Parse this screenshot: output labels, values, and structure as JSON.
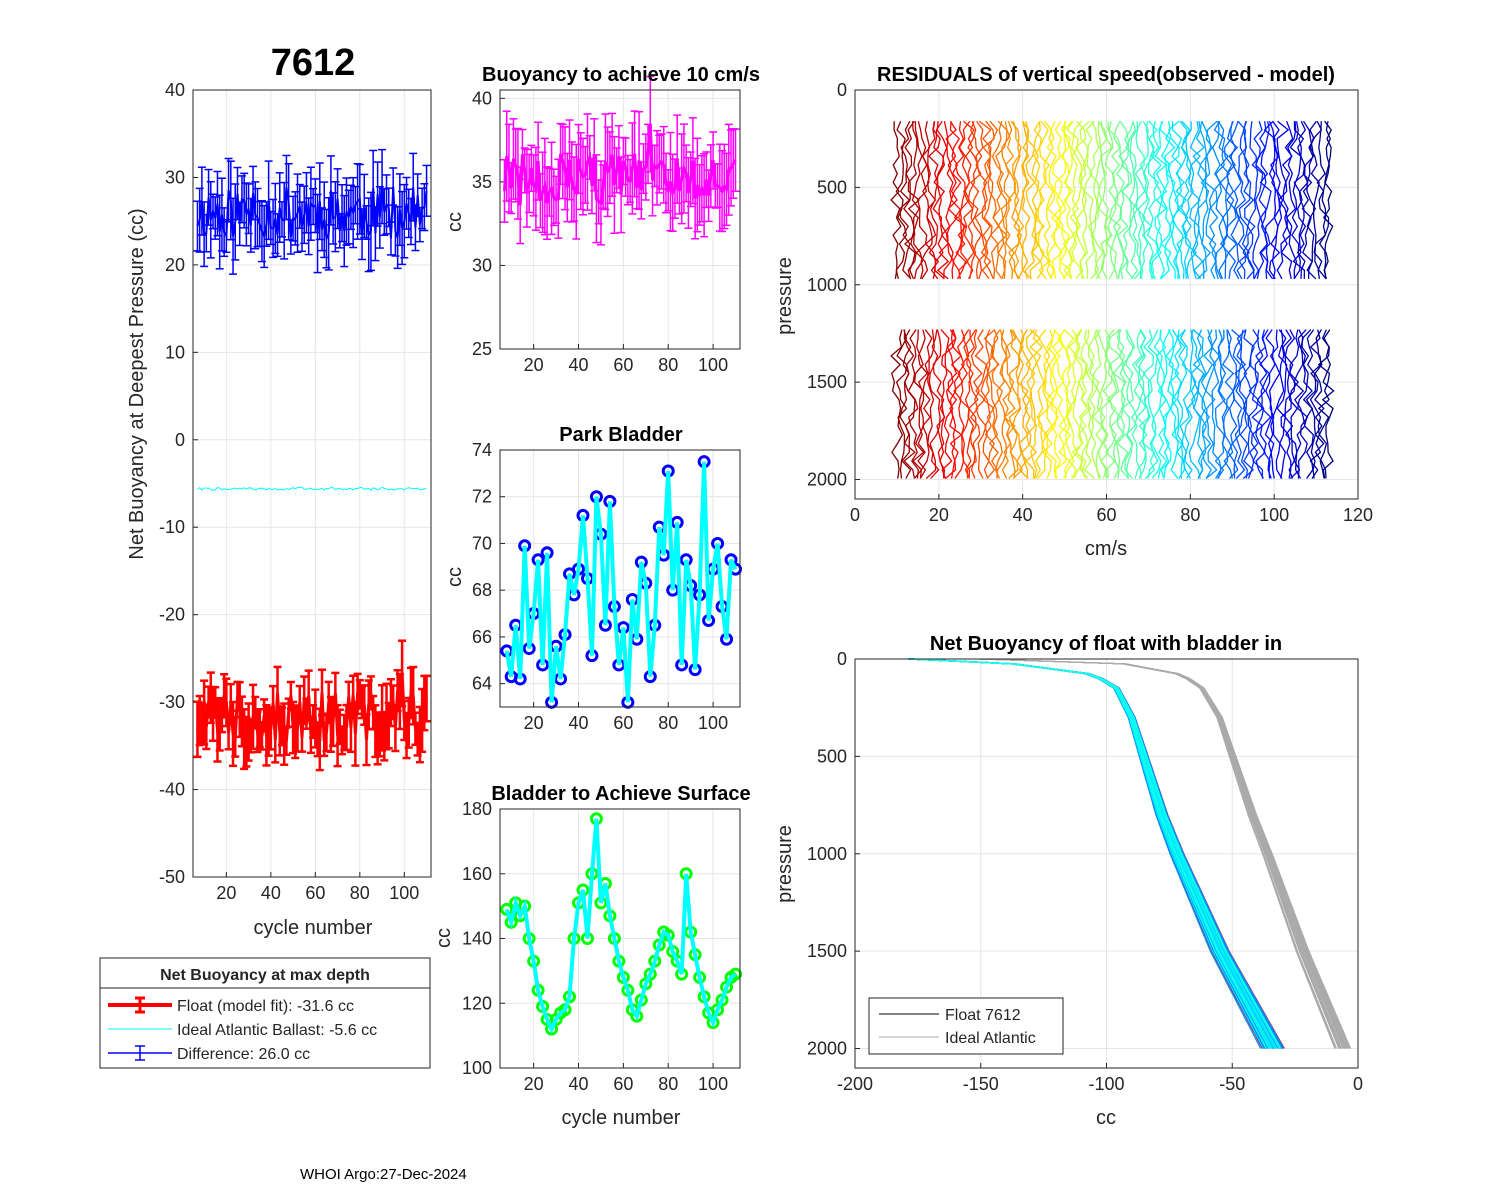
{
  "figure": {
    "footer": "WHOI Argo:27-Dec-2024"
  },
  "chart_data": [
    {
      "id": "net_buoyancy",
      "type": "line",
      "title": "7612",
      "xlabel": "cycle number",
      "ylabel": "Net Buoyancy at Deepest Pressure (cc)",
      "xlim": [
        5,
        112
      ],
      "ylim": [
        -50,
        40
      ],
      "xticks": [
        20,
        40,
        60,
        80,
        100
      ],
      "yticks": [
        -50,
        -40,
        -30,
        -20,
        -10,
        0,
        10,
        20,
        30,
        40
      ],
      "grid": true,
      "legend": {
        "title": "Net Buoyancy at max depth",
        "placement": "below",
        "entries": [
          "Float (model fit): -31.6 cc",
          "Ideal Atlantic Ballast:  -5.6 cc",
          "Difference:  26.0 cc"
        ]
      },
      "series": [
        {
          "name": "Float (model fit)",
          "color": "#ff0000",
          "errorbars": true,
          "mean": -31.6,
          "spread": 3.0,
          "err": 2.5
        },
        {
          "name": "Ideal Atlantic Ballast",
          "color": "#00ffff",
          "errorbars": false,
          "mean": -5.6,
          "spread": 0.15,
          "err": 0
        },
        {
          "name": "Difference",
          "color": "#0000ff",
          "errorbars": true,
          "mean": 26.0,
          "spread": 3.0,
          "err": 3.0
        }
      ]
    },
    {
      "id": "buoyancy_10cms",
      "type": "line",
      "title": "Buoyancy to achieve 10 cm/s",
      "xlabel": "",
      "ylabel": "cc",
      "xlim": [
        5,
        112
      ],
      "ylim": [
        25,
        40.5
      ],
      "xticks": [
        20,
        40,
        60,
        80,
        100
      ],
      "yticks": [
        25,
        30,
        35,
        40
      ],
      "grid": true,
      "series": [
        {
          "name": "buoyancy",
          "color": "#ff00ff",
          "errorbars": true,
          "mean": 35.2,
          "spread": 1.5,
          "err": 2.0
        }
      ]
    },
    {
      "id": "park_bladder",
      "type": "line",
      "title": "Park Bladder",
      "xlabel": "",
      "ylabel": "cc",
      "xlim": [
        5,
        112
      ],
      "ylim": [
        63,
        74
      ],
      "xticks": [
        20,
        40,
        60,
        80,
        100
      ],
      "yticks": [
        64,
        66,
        68,
        70,
        72,
        74
      ],
      "grid": true,
      "series": [
        {
          "name": "park bladder",
          "line_color": "#00ffff",
          "marker_color": "#0000ff",
          "x": [
            8,
            10,
            12,
            14,
            16,
            18,
            20,
            22,
            24,
            26,
            28,
            30,
            32,
            34,
            36,
            38,
            40,
            42,
            44,
            46,
            48,
            50,
            52,
            54,
            56,
            58,
            60,
            62,
            64,
            66,
            68,
            70,
            72,
            74,
            76,
            78,
            80,
            82,
            84,
            86,
            88,
            90,
            92,
            94,
            96,
            98,
            100,
            102,
            104,
            106,
            108,
            110
          ],
          "values": [
            65.4,
            64.3,
            66.5,
            64.2,
            69.9,
            65.5,
            67.0,
            69.3,
            64.8,
            69.6,
            63.2,
            65.6,
            64.2,
            66.1,
            68.7,
            67.8,
            68.9,
            71.2,
            68.5,
            65.2,
            72.0,
            70.4,
            66.5,
            71.8,
            67.3,
            64.8,
            66.4,
            63.2,
            67.6,
            65.9,
            69.2,
            68.3,
            64.3,
            66.5,
            70.7,
            69.5,
            73.1,
            68.0,
            70.9,
            64.8,
            69.3,
            68.2,
            64.6,
            67.8,
            73.5,
            66.7,
            68.9,
            70.0,
            67.3,
            65.9,
            69.3,
            68.9
          ]
        }
      ]
    },
    {
      "id": "bladder_surface",
      "type": "line",
      "title": "Bladder to Achieve Surface",
      "xlabel": "cycle number",
      "ylabel": "cc",
      "xlim": [
        5,
        112
      ],
      "ylim": [
        100,
        180
      ],
      "xticks": [
        20,
        40,
        60,
        80,
        100
      ],
      "yticks": [
        100,
        120,
        140,
        160,
        180
      ],
      "grid": true,
      "series": [
        {
          "name": "bladder surface",
          "line_color": "#00ffff",
          "marker_color": "#00ff00",
          "x": [
            8,
            10,
            12,
            14,
            16,
            18,
            20,
            22,
            24,
            26,
            28,
            30,
            32,
            34,
            36,
            38,
            40,
            42,
            44,
            46,
            48,
            50,
            52,
            54,
            56,
            58,
            60,
            62,
            64,
            66,
            68,
            70,
            72,
            74,
            76,
            78,
            80,
            82,
            84,
            86,
            88,
            90,
            92,
            94,
            96,
            98,
            100,
            102,
            104,
            106,
            108,
            110
          ],
          "values": [
            149,
            145,
            151,
            147,
            150,
            140,
            133,
            124,
            119,
            115,
            112,
            115,
            117,
            118,
            122,
            140,
            151,
            155,
            140,
            160,
            177,
            151,
            157,
            147,
            140,
            133,
            128,
            124,
            118,
            116,
            121,
            126,
            129,
            133,
            138,
            142,
            141,
            136,
            133,
            129,
            160,
            142,
            135,
            128,
            122,
            117,
            114,
            118,
            121,
            125,
            128,
            129
          ]
        }
      ]
    },
    {
      "id": "residuals",
      "type": "line",
      "title": "RESIDUALS of vertical speed(observed - model)",
      "xlabel": "cm/s",
      "ylabel": "pressure",
      "xlim": [
        0,
        120
      ],
      "ylim": [
        0,
        2100
      ],
      "y_reversed": true,
      "xticks": [
        0,
        20,
        40,
        60,
        80,
        100,
        120
      ],
      "yticks": [
        0,
        500,
        1000,
        1500,
        2000
      ],
      "grid": true,
      "profile_count": 104,
      "x_start": 10,
      "x_step": 1.0,
      "segments": [
        [
          160,
          1010
        ],
        [
          1230,
          1995
        ]
      ],
      "colormap": "jet"
    },
    {
      "id": "net_buoyancy_bladder",
      "type": "line",
      "title": "Net Buoyancy of float with bladder in",
      "xlabel": "cc",
      "ylabel": "pressure",
      "xlim": [
        -200,
        0
      ],
      "ylim": [
        0,
        2100
      ],
      "y_reversed": true,
      "xticks": [
        -200,
        -150,
        -100,
        -50,
        0
      ],
      "yticks": [
        0,
        500,
        1000,
        1500,
        2000
      ],
      "grid": true,
      "legend": {
        "placement": "bottom-left",
        "entries": [
          "Float 7612",
          "Ideal Atlantic"
        ]
      },
      "float_profile": {
        "pressure": [
          0,
          20,
          80,
          150,
          300,
          800,
          1000,
          1500,
          2000
        ],
        "cc": [
          -178,
          -140,
          -105,
          -96,
          -90,
          -78,
          -72,
          -55,
          -34
        ]
      },
      "ideal_profile": {
        "pressure": [
          0,
          20,
          80,
          150,
          300,
          800,
          1000,
          1500,
          2000
        ],
        "cc": [
          -150,
          -95,
          -70,
          -62,
          -55,
          -42,
          -36,
          -22,
          -6
        ]
      },
      "colors": {
        "float": "#000000",
        "ideal": "#aaaaaa"
      }
    }
  ]
}
